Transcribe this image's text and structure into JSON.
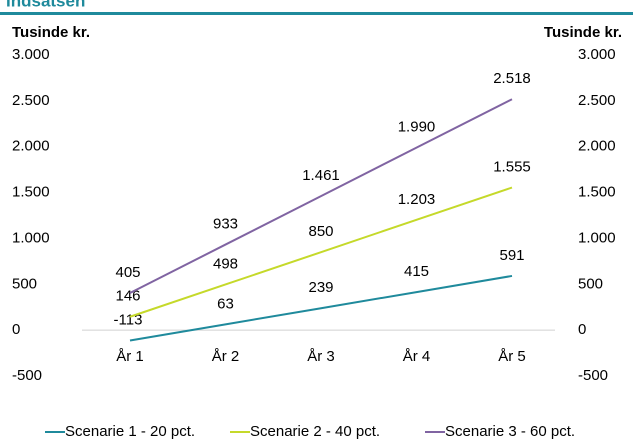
{
  "chart_data": {
    "type": "line",
    "title": "Indsatsen",
    "y_label": "Tusinde kr.",
    "y2_label": "Tusinde kr.",
    "categories": [
      "År 1",
      "År 2",
      "År 3",
      "År 4",
      "År 5"
    ],
    "series": [
      {
        "name": "Scenarie 1 - 20 pct.",
        "color": "#1f8a9c",
        "values": [
          -113,
          63,
          239,
          415,
          591
        ],
        "value_labels": [
          "-113",
          "63",
          "239",
          "415",
          "591"
        ]
      },
      {
        "name": "Scenarie 2 - 40 pct.",
        "color": "#c5d92a",
        "values": [
          146,
          498,
          850,
          1203,
          1555
        ],
        "value_labels": [
          "146",
          "498",
          "850",
          "1.203",
          "1.555"
        ]
      },
      {
        "name": "Scenarie 3 - 60 pct.",
        "color": "#8064a2",
        "values": [
          405,
          933,
          1461,
          1990,
          2518
        ],
        "value_labels": [
          "405",
          "933",
          "1.461",
          "1.990",
          "2.518"
        ]
      }
    ],
    "ylim": [
      -500,
      3000
    ],
    "yticks": [
      -500,
      0,
      500,
      {
        "value": 1000,
        "label": "1.000"
      },
      {
        "value": 1500,
        "label": "1.500"
      },
      {
        "value": 2000,
        "label": "2.000"
      },
      {
        "value": 2500,
        "label": "2.500"
      },
      {
        "value": 3000,
        "label": "3.000"
      }
    ],
    "y2lim": [
      -500,
      3000
    ],
    "y2ticks": [
      -500,
      0,
      500,
      {
        "value": 1000,
        "label": "1.000"
      },
      {
        "value": 1500,
        "label": "1.500"
      },
      {
        "value": 2000,
        "label": "2.000"
      },
      {
        "value": 2500,
        "label": "2.500"
      },
      {
        "value": 3000,
        "label": "3.000"
      }
    ],
    "legend": "bottom"
  }
}
